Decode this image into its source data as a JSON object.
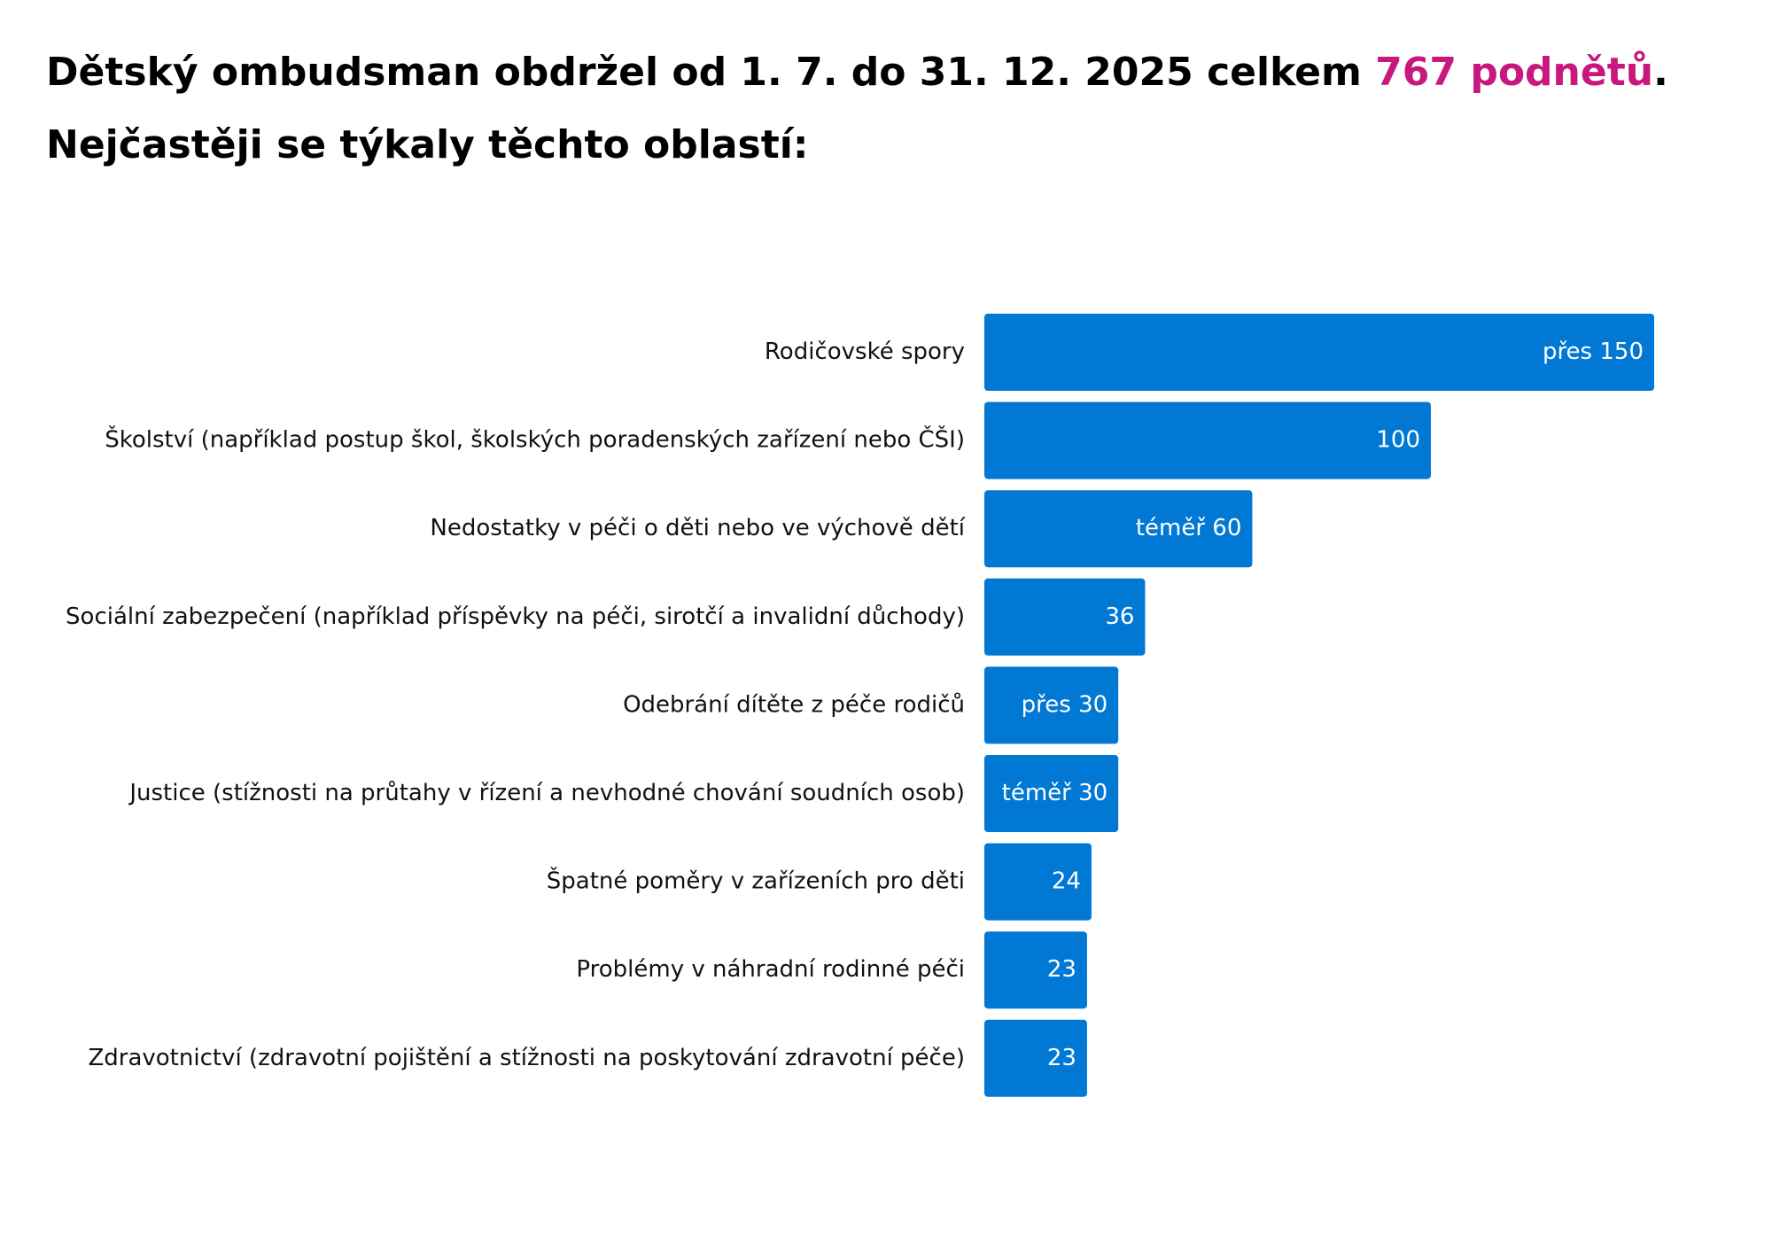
{
  "chart_data": {
    "type": "hbar",
    "title_parts": [
      {
        "text": "Dětský ombudsman obdržel od 1. 7. do 31. 12. 2025  celkem ",
        "color": "#000000"
      },
      {
        "text": "767 podnětů",
        "color": "#c8177d"
      },
      {
        "text": ".",
        "color": "#000000"
      }
    ],
    "subtitle": "Nejčastěji se týkaly těchto oblastí:",
    "categories": [
      "Rodičovské spory",
      "Školství (například postup škol, školských poradenských zařízení nebo ČŠI)",
      "Nedostatky v péči o děti nebo ve výchově dětí",
      "Sociální zabezpečení (například příspěvky na péči, sirotčí a invalidní důchody)",
      "Odebrání dítěte z péče rodičů",
      "Justice (stížnosti na průtahy v řízení a nevhodné chování soudních osob)",
      "Špatné poměry v zařízeních pro děti",
      "Problémy v náhradní rodinné péči",
      "Zdravotnictví (zdravotní pojištění a stížnosti na poskytování zdravotní péče)"
    ],
    "values": [
      150,
      100,
      60,
      36,
      30,
      30,
      24,
      23,
      23
    ],
    "value_labels": [
      "přes 150",
      "100",
      "téměř 60",
      "36",
      "přes 30",
      "téměř 30",
      "24",
      "23",
      "23"
    ],
    "color": "#0078d4"
  }
}
